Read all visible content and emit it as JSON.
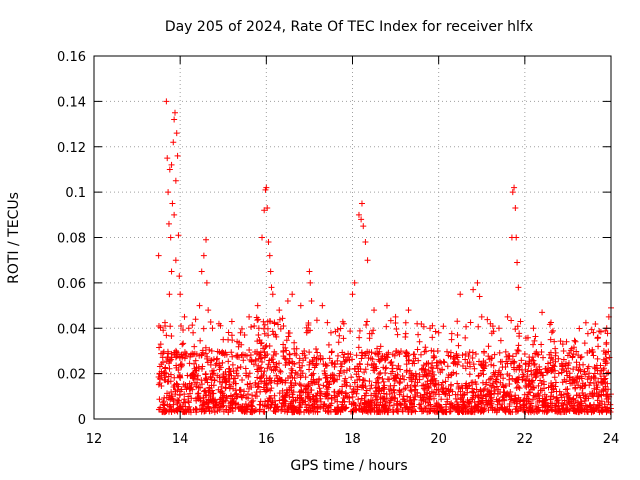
{
  "chart_data": {
    "type": "scatter",
    "title": "Day 205 of 2024, Rate Of TEC Index for receiver hlfx",
    "xlabel": "GPS time / hours",
    "ylabel": "ROTI / TECUs",
    "xlim": [
      12,
      24
    ],
    "ylim": [
      0,
      0.16
    ],
    "xticks": [
      "12",
      "14",
      "16",
      "18",
      "20",
      "22",
      "24"
    ],
    "yticks": [
      "0",
      "0.02",
      "0.04",
      "0.06",
      "0.08",
      "0.1",
      "0.12",
      "0.14",
      "0.16"
    ],
    "grid": true,
    "marker": "+",
    "color": "#ff0000",
    "series": [
      {
        "name": "ROTI",
        "description": "dense band of points between 13.5 h and 24 h, mostly 0.005-0.03 TECU, with spikes",
        "band": {
          "x_start": 13.5,
          "x_end": 24.0,
          "y_low": 0.003,
          "y_high": 0.03
        },
        "points": [
          [
            13.5,
            0.072
          ],
          [
            13.55,
            0.033
          ],
          [
            13.6,
            0.025
          ],
          [
            13.65,
            0.041
          ],
          [
            13.68,
            0.14
          ],
          [
            13.7,
            0.115
          ],
          [
            13.72,
            0.1
          ],
          [
            13.74,
            0.086
          ],
          [
            13.76,
            0.11
          ],
          [
            13.78,
            0.08
          ],
          [
            13.8,
            0.112
          ],
          [
            13.82,
            0.095
          ],
          [
            13.84,
            0.122
          ],
          [
            13.86,
            0.132
          ],
          [
            13.88,
            0.135
          ],
          [
            13.9,
            0.105
          ],
          [
            13.92,
            0.126
          ],
          [
            13.94,
            0.116
          ],
          [
            13.96,
            0.081
          ],
          [
            13.98,
            0.063
          ],
          [
            14.0,
            0.055
          ],
          [
            13.9,
            0.07
          ],
          [
            13.86,
            0.09
          ],
          [
            13.8,
            0.065
          ],
          [
            13.75,
            0.055
          ],
          [
            14.02,
            0.041
          ],
          [
            14.1,
            0.045
          ],
          [
            14.2,
            0.04
          ],
          [
            14.3,
            0.038
          ],
          [
            14.45,
            0.05
          ],
          [
            14.5,
            0.065
          ],
          [
            14.55,
            0.072
          ],
          [
            14.6,
            0.079
          ],
          [
            14.62,
            0.06
          ],
          [
            14.65,
            0.048
          ],
          [
            14.75,
            0.04
          ],
          [
            14.9,
            0.042
          ],
          [
            15.0,
            0.035
          ],
          [
            15.2,
            0.043
          ],
          [
            15.4,
            0.038
          ],
          [
            15.6,
            0.045
          ],
          [
            15.8,
            0.05
          ],
          [
            15.9,
            0.08
          ],
          [
            15.95,
            0.092
          ],
          [
            15.98,
            0.101
          ],
          [
            16.0,
            0.102
          ],
          [
            16.02,
            0.093
          ],
          [
            16.05,
            0.078
          ],
          [
            16.08,
            0.072
          ],
          [
            16.1,
            0.065
          ],
          [
            16.12,
            0.058
          ],
          [
            16.15,
            0.055
          ],
          [
            16.3,
            0.048
          ],
          [
            16.5,
            0.052
          ],
          [
            16.6,
            0.055
          ],
          [
            16.8,
            0.05
          ],
          [
            17.0,
            0.065
          ],
          [
            17.02,
            0.06
          ],
          [
            17.05,
            0.052
          ],
          [
            17.3,
            0.05
          ],
          [
            17.5,
            0.038
          ],
          [
            17.8,
            0.042
          ],
          [
            18.0,
            0.055
          ],
          [
            18.05,
            0.06
          ],
          [
            18.15,
            0.09
          ],
          [
            18.2,
            0.088
          ],
          [
            18.22,
            0.095
          ],
          [
            18.25,
            0.085
          ],
          [
            18.3,
            0.078
          ],
          [
            18.35,
            0.07
          ],
          [
            18.5,
            0.048
          ],
          [
            18.8,
            0.05
          ],
          [
            19.0,
            0.045
          ],
          [
            19.3,
            0.048
          ],
          [
            19.5,
            0.042
          ],
          [
            19.8,
            0.04
          ],
          [
            20.0,
            0.038
          ],
          [
            20.3,
            0.035
          ],
          [
            20.5,
            0.055
          ],
          [
            20.8,
            0.057
          ],
          [
            20.9,
            0.06
          ],
          [
            20.95,
            0.054
          ],
          [
            21.0,
            0.045
          ],
          [
            21.2,
            0.042
          ],
          [
            21.4,
            0.04
          ],
          [
            21.6,
            0.045
          ],
          [
            21.7,
            0.08
          ],
          [
            21.72,
            0.1
          ],
          [
            21.75,
            0.102
          ],
          [
            21.78,
            0.093
          ],
          [
            21.8,
            0.08
          ],
          [
            21.82,
            0.069
          ],
          [
            21.85,
            0.058
          ],
          [
            21.9,
            0.043
          ],
          [
            22.2,
            0.04
          ],
          [
            22.4,
            0.047
          ],
          [
            22.6,
            0.035
          ],
          [
            22.9,
            0.03
          ],
          [
            23.0,
            0.028
          ],
          [
            23.2,
            0.025
          ],
          [
            23.5,
            0.03
          ],
          [
            23.7,
            0.032
          ],
          [
            23.9,
            0.04
          ],
          [
            23.95,
            0.045
          ],
          [
            24.0,
            0.049
          ]
        ]
      }
    ]
  }
}
